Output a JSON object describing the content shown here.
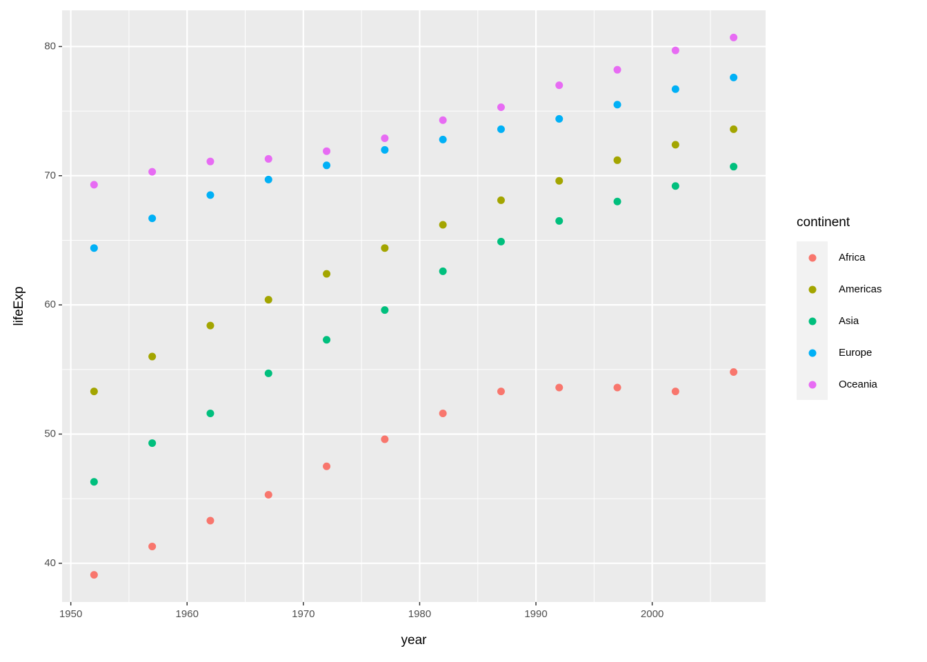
{
  "chart_data": {
    "type": "scatter",
    "x_label": "year",
    "y_label": "lifeExp",
    "legend_title": "continent",
    "x": [
      1952,
      1957,
      1962,
      1967,
      1972,
      1977,
      1982,
      1987,
      1992,
      1997,
      2002,
      2007
    ],
    "series": [
      {
        "name": "Africa",
        "color": "#F8766D",
        "values": [
          39.1,
          41.3,
          43.3,
          45.3,
          47.5,
          49.6,
          51.6,
          53.3,
          53.6,
          53.6,
          53.3,
          54.8
        ]
      },
      {
        "name": "Americas",
        "color": "#A3A500",
        "values": [
          53.3,
          56.0,
          58.4,
          60.4,
          62.4,
          64.4,
          66.2,
          68.1,
          69.6,
          71.2,
          72.4,
          73.6
        ]
      },
      {
        "name": "Asia",
        "color": "#00BF7D",
        "values": [
          46.3,
          49.3,
          51.6,
          54.7,
          57.3,
          59.6,
          62.6,
          64.9,
          66.5,
          68.0,
          69.2,
          70.7
        ]
      },
      {
        "name": "Europe",
        "color": "#00B0F6",
        "values": [
          64.4,
          66.7,
          68.5,
          69.7,
          70.8,
          72.0,
          72.8,
          73.6,
          74.4,
          75.5,
          76.7,
          77.6
        ]
      },
      {
        "name": "Oceania",
        "color": "#E76BF3",
        "values": [
          69.3,
          70.3,
          71.1,
          71.3,
          71.9,
          72.9,
          74.3,
          75.3,
          77.0,
          78.2,
          79.7,
          80.7
        ]
      }
    ],
    "xlim": [
      1949.25,
      2009.75
    ],
    "ylim": [
      37.0,
      82.8
    ],
    "xticks": [
      1950,
      1960,
      1970,
      1980,
      1990,
      2000
    ],
    "yticks": [
      40,
      50,
      60,
      70,
      80
    ],
    "x_minor_ticks": [
      1955,
      1965,
      1975,
      1985,
      1995,
      2005
    ],
    "y_minor_ticks": [
      45,
      55,
      65,
      75
    ],
    "grid": true,
    "legend": "right"
  }
}
